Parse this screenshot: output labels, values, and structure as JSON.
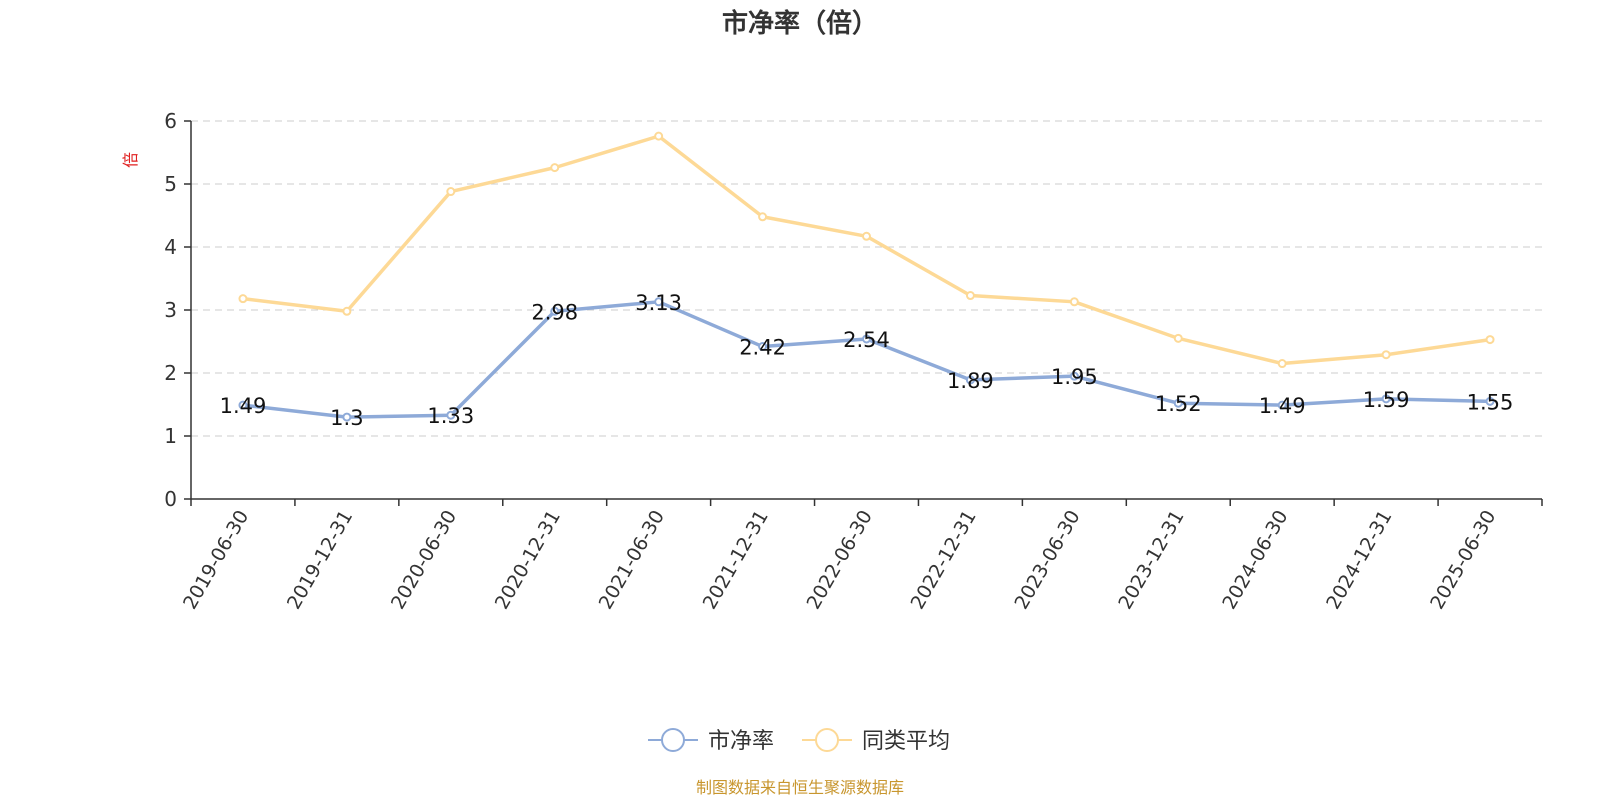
{
  "chart_data": {
    "type": "line",
    "title": "市净率（倍）",
    "ylabel": "倍",
    "xlabel": "",
    "categories": [
      "2019-06-30",
      "2019-12-31",
      "2020-06-30",
      "2020-12-31",
      "2021-06-30",
      "2021-12-31",
      "2022-06-30",
      "2022-12-31",
      "2023-06-30",
      "2023-12-31",
      "2024-06-30",
      "2024-12-31",
      "2025-06-30"
    ],
    "yticks": [
      "0",
      "1",
      "2",
      "3",
      "4",
      "5",
      "6"
    ],
    "ylim": [
      0,
      6
    ],
    "grid": true,
    "legend_position": "bottom",
    "series": [
      {
        "name": "市净率",
        "color": "#8eaad8",
        "values": [
          1.49,
          1.3,
          1.33,
          2.98,
          3.13,
          2.42,
          2.54,
          1.89,
          1.95,
          1.52,
          1.49,
          1.59,
          1.55
        ],
        "labels": [
          "1.49",
          "1.3",
          "1.33",
          "2.98",
          "3.13",
          "2.42",
          "2.54",
          "1.89",
          "1.95",
          "1.52",
          "1.49",
          "1.59",
          "1.55"
        ]
      },
      {
        "name": "同类平均",
        "color": "#fdd996",
        "values": [
          3.18,
          2.98,
          4.88,
          5.26,
          5.76,
          4.48,
          4.17,
          3.23,
          3.13,
          2.55,
          2.15,
          2.29,
          2.53
        ]
      }
    ]
  },
  "source_note": "制图数据来自恒生聚源数据库",
  "colors": {
    "ylabel": "#e02020",
    "source": "#c8962e",
    "axis": "#333333",
    "grid": "#cccccc"
  }
}
